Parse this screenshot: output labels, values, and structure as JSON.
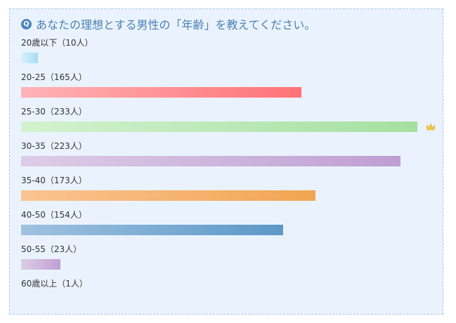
{
  "question": {
    "icon": "Q",
    "text": "あなたの理想とする男性の「年齢」を教えてください。"
  },
  "chart_data": {
    "type": "bar",
    "orientation": "horizontal",
    "unit": "人",
    "categories": [
      "20歳以下",
      "20-25",
      "25-30",
      "30-35",
      "35-40",
      "40-50",
      "50-55",
      "60歳以上"
    ],
    "values": [
      10,
      165,
      233,
      223,
      173,
      154,
      23,
      1
    ],
    "labels": [
      "20歳以下（10人）",
      "20-25（165人）",
      "25-30（233人）",
      "30-35（223人）",
      "35-40（173人）",
      "40-50（154人）",
      "50-55（23人）",
      "60歳以上（1人）"
    ],
    "colors": [
      [
        "#d8f1fb",
        "#a6dcf3"
      ],
      [
        "#ffb3b6",
        "#ff7276"
      ],
      [
        "#d3f2d0",
        "#a5e0a0"
      ],
      [
        "#ddcce7",
        "#bf9fd3"
      ],
      [
        "#fac492",
        "#f2a552"
      ],
      [
        "#9fc2e0",
        "#5c98c8"
      ],
      [
        "#ddcce7",
        "#bf9fd3"
      ],
      [
        "#dddddd",
        "#bbbbbb"
      ]
    ],
    "max_marker": "crown-icon",
    "grid": false,
    "legend": "none"
  }
}
